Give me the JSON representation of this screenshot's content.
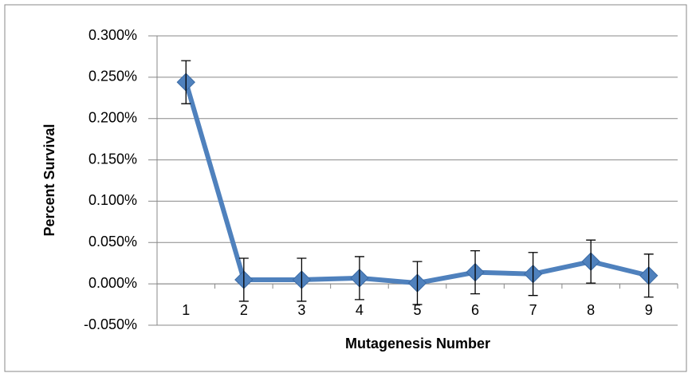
{
  "chart_data": {
    "type": "line",
    "y_label": "Percent Survival",
    "x_label": "Mutagenesis Number",
    "categories": [
      "1",
      "2",
      "3",
      "4",
      "5",
      "6",
      "7",
      "8",
      "9"
    ],
    "series": [
      {
        "color": "#4f81bd",
        "values": [
          0.244,
          0.005,
          0.005,
          0.007,
          0.001,
          0.014,
          0.012,
          0.027,
          0.01
        ],
        "errors": [
          0.026,
          0.026,
          0.026,
          0.026,
          0.026,
          0.026,
          0.026,
          0.026,
          0.026
        ]
      }
    ],
    "ylim": [
      -0.05,
      0.3
    ],
    "yticks": [
      {
        "value": -0.05,
        "label": "-0.050%"
      },
      {
        "value": 0,
        "label": "0.000%"
      },
      {
        "value": 0.05,
        "label": "0.050%"
      },
      {
        "value": 0.1,
        "label": "0.100%"
      },
      {
        "value": 0.15,
        "label": "0.150%"
      },
      {
        "value": 0.2,
        "label": "0.200%"
      },
      {
        "value": 0.25,
        "label": "0.250%"
      },
      {
        "value": 0.3,
        "label": "0.300%"
      }
    ],
    "grid": true
  }
}
